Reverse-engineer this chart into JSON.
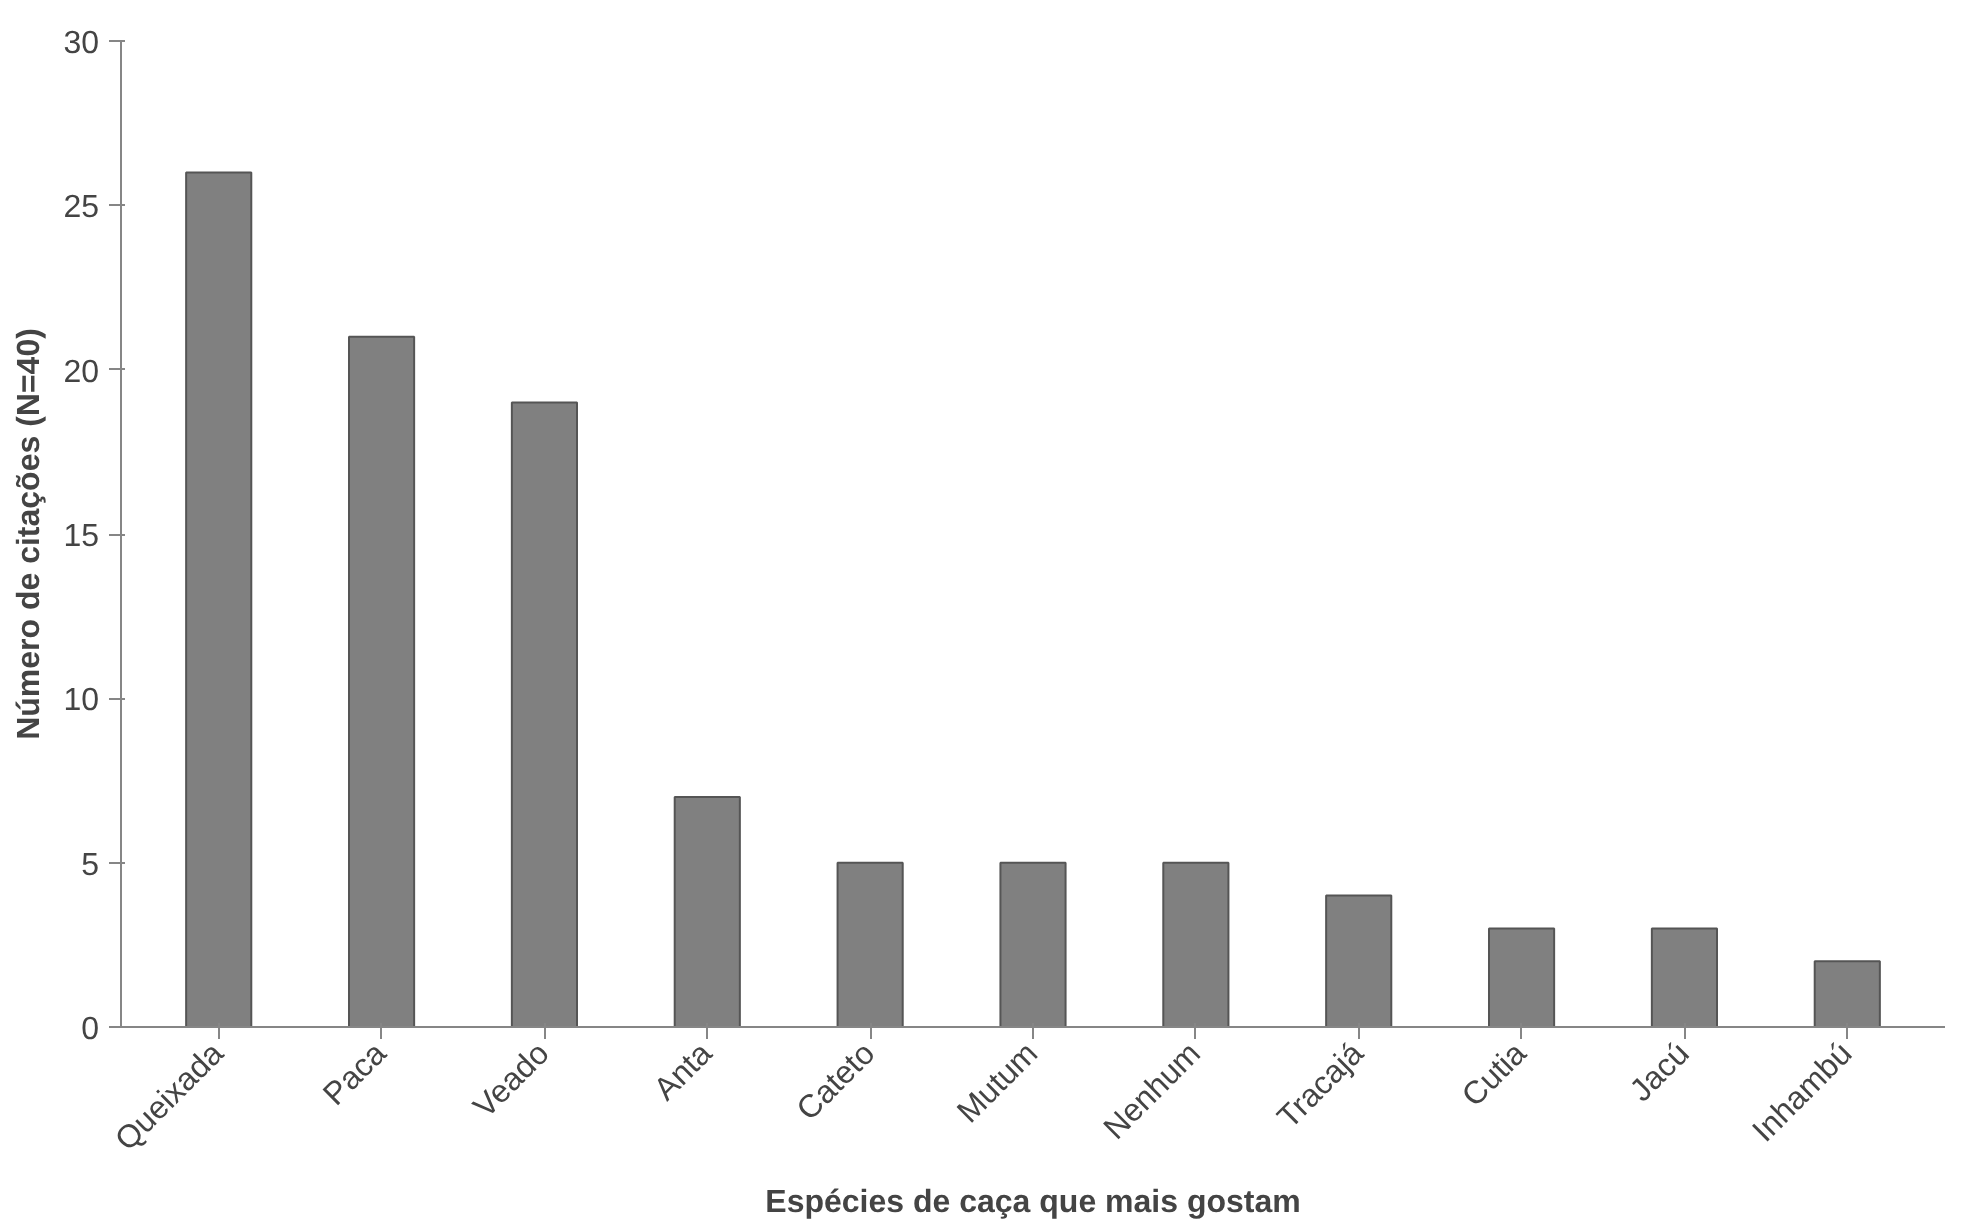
{
  "chart_data": {
    "type": "bar",
    "xlabel": "Espécies de caça que mais gostam",
    "ylabel": "Número de citações (N=40)",
    "categories": [
      "Queixada",
      "Paca",
      "Veado",
      "Anta",
      "Cateto",
      "Mutum",
      "Nenhum",
      "Tracajá",
      "Cutia",
      "Jacú",
      "Inhambú"
    ],
    "values": [
      26,
      21,
      19,
      7,
      5,
      5,
      5,
      4,
      3,
      3,
      2
    ],
    "color": "#808080",
    "ylim": [
      0,
      30
    ],
    "yticks": [
      0,
      5,
      10,
      15,
      20,
      25,
      30
    ],
    "grid": false
  }
}
